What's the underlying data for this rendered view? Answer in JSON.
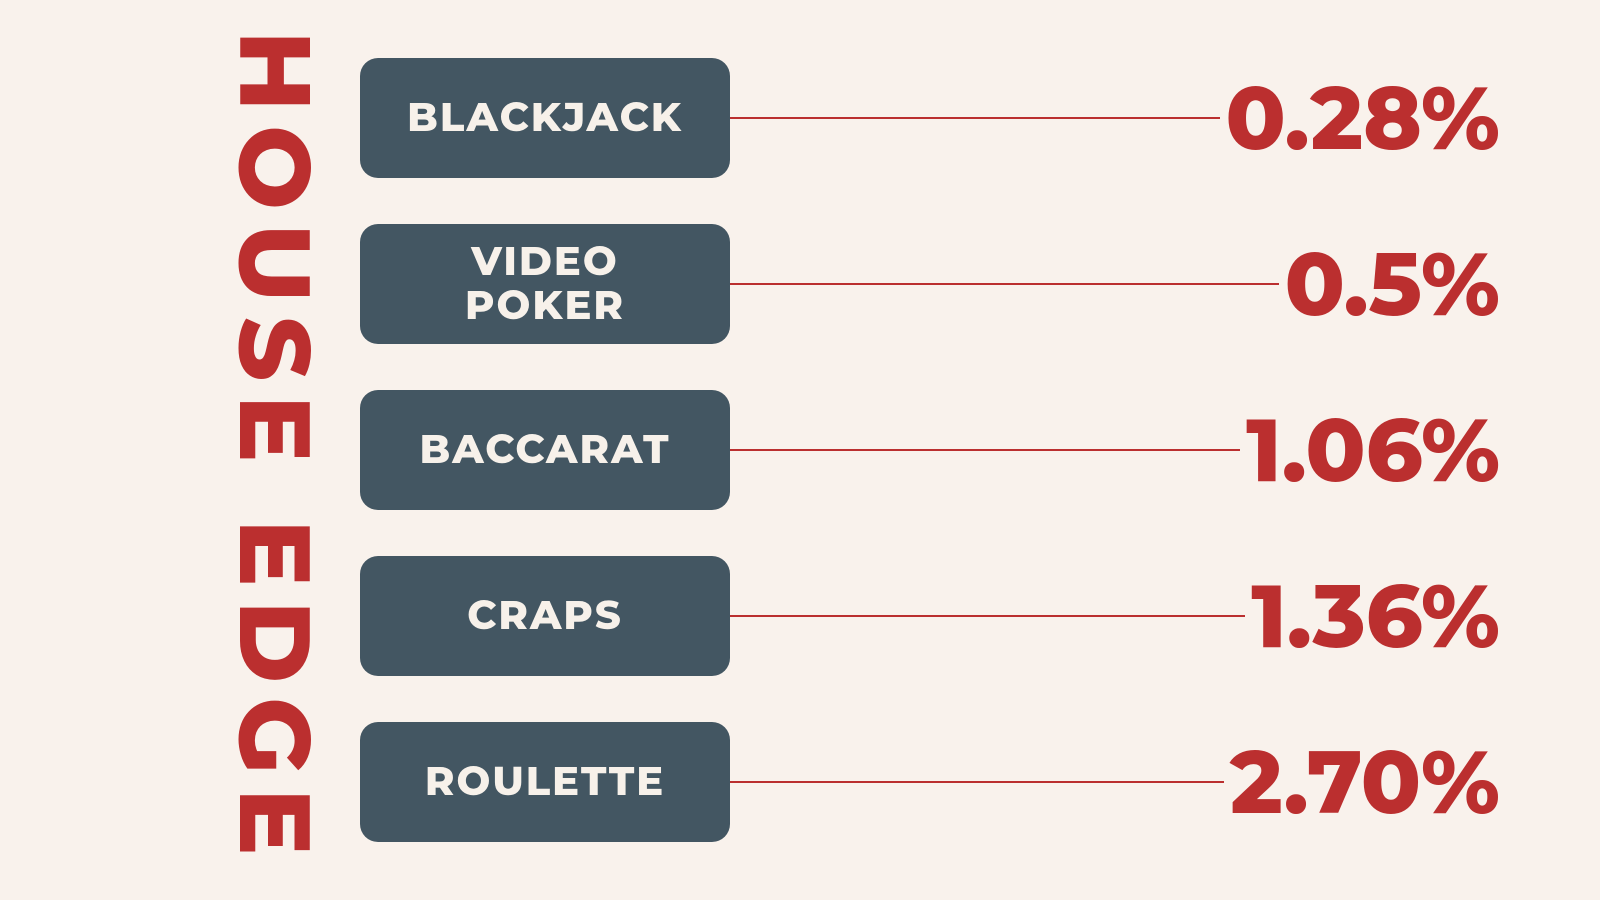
{
  "infographic": {
    "type": "infographic",
    "title": "HOUSE EDGE",
    "background_color": "#f9f2ec",
    "accent_color": "#bb2f2f",
    "pill_bg_color": "#435662",
    "pill_text_color": "#f7f1ea",
    "title_fontsize": 100,
    "title_letter_spacing": 14,
    "pill_fontsize": 40,
    "value_fontsize": 88,
    "pill_radius": 18,
    "pill_width": 370,
    "pill_height": 120,
    "row_gap": 46,
    "connector_width": 2,
    "items": [
      {
        "label": "BLACKJACK",
        "value": "0.28%"
      },
      {
        "label": "VIDEO\nPOKER",
        "value": "0.5%"
      },
      {
        "label": "BACCARAT",
        "value": "1.06%"
      },
      {
        "label": "CRAPS",
        "value": "1.36%"
      },
      {
        "label": "ROULETTE",
        "value": "2.70%"
      }
    ]
  }
}
